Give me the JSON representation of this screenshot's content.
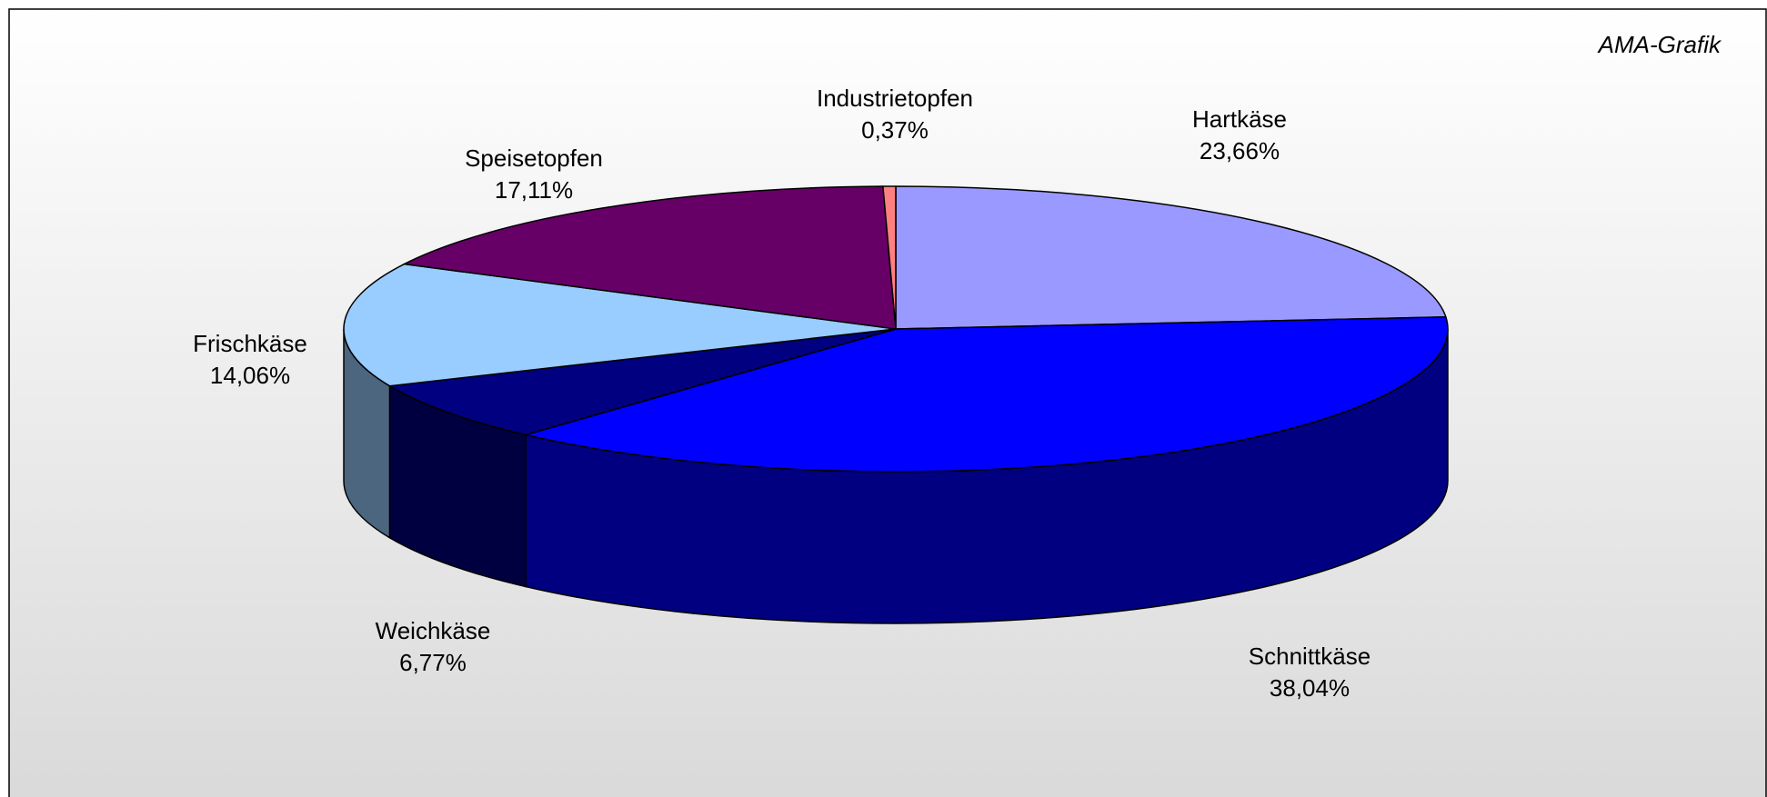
{
  "chart_data": {
    "type": "pie3d",
    "annotation": "AMA-Grafik",
    "categories": [
      "Hartkäse",
      "Schnittkäse",
      "Weichkäse",
      "Frischkäse",
      "Speisetopfen",
      "Industrietopfen"
    ],
    "values": [
      23.66,
      38.04,
      6.77,
      14.06,
      17.11,
      0.37
    ],
    "value_labels": [
      "23,66%",
      "38,04%",
      "6,77%",
      "14,06%",
      "17,11%",
      "0,37%"
    ],
    "colors": [
      "#9999ff",
      "#0000ff",
      "#000080",
      "#99ccff",
      "#660066",
      "#ff8080"
    ]
  }
}
